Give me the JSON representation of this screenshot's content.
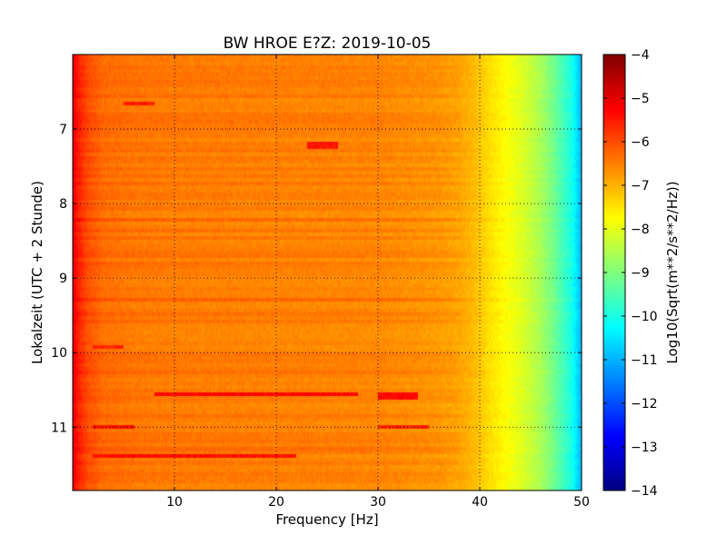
{
  "chart_data": {
    "type": "heatmap",
    "title": "BW HROE E?Z: 2019-10-05",
    "xlabel": "Frequency [Hz]",
    "ylabel": "Lokalzeit (UTC + 2 Stunde)",
    "xlim": [
      0,
      50
    ],
    "ylim": [
      11.85,
      6.0
    ],
    "x_ticks": [
      10,
      20,
      30,
      40,
      50
    ],
    "y_ticks": [
      7,
      8,
      9,
      10,
      11
    ],
    "grid": true,
    "grid_style": "dotted",
    "colorbar": {
      "label": "Log10(Sqrt(m**2/s**2/Hz))",
      "range": [
        -14,
        -4
      ],
      "ticks": [
        -4,
        -5,
        -6,
        -7,
        -8,
        -9,
        -10,
        -11,
        -12,
        -13,
        -14
      ],
      "colormap": "jet"
    },
    "spectrum_profile": {
      "frequency_hz": [
        0,
        0.5,
        1.5,
        3,
        6,
        10,
        20,
        30,
        36,
        38,
        39,
        40,
        41,
        42,
        43,
        44,
        45,
        46,
        47,
        48,
        49,
        49.5,
        50
      ],
      "value": [
        -5.0,
        -5.5,
        -6.0,
        -6.3,
        -6.4,
        -6.45,
        -6.5,
        -6.55,
        -6.7,
        -6.85,
        -7.0,
        -7.2,
        -7.45,
        -7.65,
        -7.85,
        -8.05,
        -8.3,
        -8.6,
        -9.0,
        -9.5,
        -10.0,
        -10.5,
        -11.0
      ]
    },
    "intense_streaks": [
      {
        "time": 10.55,
        "f_from": 8,
        "f_to": 28,
        "value": -5.3
      },
      {
        "time": 10.58,
        "f_from": 30,
        "f_to": 34,
        "value": -5.3
      },
      {
        "time": 11.38,
        "f_from": 2,
        "f_to": 22,
        "value": -5.4
      },
      {
        "time": 10.98,
        "f_from": 2,
        "f_to": 6,
        "value": -5.4
      },
      {
        "time": 6.65,
        "f_from": 5,
        "f_to": 8,
        "value": -5.5
      },
      {
        "time": 7.22,
        "f_from": 23,
        "f_to": 26,
        "value": -5.5
      },
      {
        "time": 9.92,
        "f_from": 2,
        "f_to": 5,
        "value": -5.6
      },
      {
        "time": 11.0,
        "f_from": 30,
        "f_to": 35,
        "value": -5.6
      }
    ]
  }
}
